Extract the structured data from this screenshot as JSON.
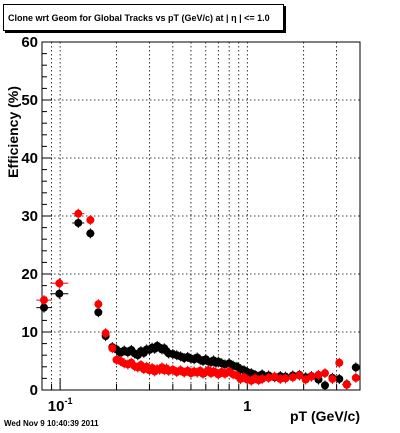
{
  "chart_data": {
    "type": "scatter",
    "title": "Clone wrt Geom for Global Tracks vs pT (GeV/c) at |  η | <= 1.0",
    "xlabel": "pT (GeV/c)",
    "ylabel": "Efficiency (%)",
    "xscale": "log",
    "xlim": [
      0.08,
      4.0
    ],
    "ylim": [
      0,
      60
    ],
    "grid": true,
    "x_tick_labels": [
      {
        "value": 0.1,
        "base": "10",
        "exp": "-1"
      },
      {
        "value": 1,
        "base": "1",
        "exp": ""
      }
    ],
    "y_ticks": [
      0,
      10,
      20,
      30,
      40,
      50,
      60
    ],
    "series": [
      {
        "color": "#000000",
        "points": [
          [
            0.082,
            14.2
          ],
          [
            0.099,
            16.6
          ],
          [
            0.125,
            28.8
          ],
          [
            0.145,
            27.0
          ],
          [
            0.16,
            13.4
          ],
          [
            0.175,
            9.3
          ],
          [
            0.19,
            7.4
          ],
          [
            0.2,
            7.0
          ],
          [
            0.21,
            6.4
          ],
          [
            0.22,
            6.8
          ],
          [
            0.23,
            6.5
          ],
          [
            0.24,
            6.9
          ],
          [
            0.25,
            6.3
          ],
          [
            0.26,
            6.0
          ],
          [
            0.27,
            6.7
          ],
          [
            0.28,
            6.4
          ],
          [
            0.29,
            7.0
          ],
          [
            0.3,
            6.9
          ],
          [
            0.31,
            7.3
          ],
          [
            0.32,
            7.1
          ],
          [
            0.33,
            7.6
          ],
          [
            0.34,
            7.3
          ],
          [
            0.35,
            7.0
          ],
          [
            0.36,
            7.2
          ],
          [
            0.37,
            6.7
          ],
          [
            0.38,
            6.3
          ],
          [
            0.4,
            6.2
          ],
          [
            0.42,
            6.0
          ],
          [
            0.44,
            5.8
          ],
          [
            0.46,
            5.5
          ],
          [
            0.48,
            5.7
          ],
          [
            0.5,
            5.4
          ],
          [
            0.52,
            5.3
          ],
          [
            0.54,
            5.6
          ],
          [
            0.56,
            5.2
          ],
          [
            0.58,
            5.0
          ],
          [
            0.6,
            5.3
          ],
          [
            0.62,
            4.9
          ],
          [
            0.64,
            4.8
          ],
          [
            0.66,
            5.1
          ],
          [
            0.68,
            4.7
          ],
          [
            0.7,
            4.9
          ],
          [
            0.73,
            4.6
          ],
          [
            0.76,
            4.4
          ],
          [
            0.8,
            4.6
          ],
          [
            0.84,
            4.2
          ],
          [
            0.88,
            4.0
          ],
          [
            0.92,
            3.6
          ],
          [
            0.96,
            3.4
          ],
          [
            1.0,
            3.1
          ],
          [
            1.05,
            2.9
          ],
          [
            1.1,
            2.6
          ],
          [
            1.15,
            2.3
          ],
          [
            1.2,
            2.7
          ],
          [
            1.3,
            2.5
          ],
          [
            1.4,
            2.2
          ],
          [
            1.5,
            2.4
          ],
          [
            1.6,
            2.3
          ],
          [
            1.75,
            2.5
          ],
          [
            1.9,
            2.6
          ],
          [
            2.05,
            2.2
          ],
          [
            2.2,
            2.4
          ],
          [
            2.4,
            1.8
          ],
          [
            2.6,
            0.8
          ],
          [
            2.85,
            2.1
          ],
          [
            3.1,
            1.9
          ],
          [
            3.4,
            1.0
          ],
          [
            3.8,
            3.9
          ]
        ]
      },
      {
        "color": "#ff0000",
        "points": [
          [
            0.082,
            15.5
          ],
          [
            0.099,
            18.4
          ],
          [
            0.125,
            30.4
          ],
          [
            0.145,
            29.3
          ],
          [
            0.16,
            14.8
          ],
          [
            0.175,
            9.8
          ],
          [
            0.19,
            7.2
          ],
          [
            0.2,
            5.2
          ],
          [
            0.21,
            5.0
          ],
          [
            0.22,
            4.6
          ],
          [
            0.23,
            4.4
          ],
          [
            0.24,
            4.7
          ],
          [
            0.25,
            4.1
          ],
          [
            0.26,
            3.9
          ],
          [
            0.27,
            4.3
          ],
          [
            0.28,
            3.6
          ],
          [
            0.29,
            4.0
          ],
          [
            0.3,
            3.4
          ],
          [
            0.31,
            3.8
          ],
          [
            0.32,
            3.2
          ],
          [
            0.33,
            3.6
          ],
          [
            0.34,
            3.5
          ],
          [
            0.35,
            3.9
          ],
          [
            0.36,
            3.4
          ],
          [
            0.37,
            3.7
          ],
          [
            0.38,
            3.3
          ],
          [
            0.4,
            3.5
          ],
          [
            0.42,
            3.1
          ],
          [
            0.44,
            3.4
          ],
          [
            0.46,
            3.0
          ],
          [
            0.48,
            3.3
          ],
          [
            0.5,
            2.9
          ],
          [
            0.52,
            3.2
          ],
          [
            0.54,
            3.0
          ],
          [
            0.56,
            3.3
          ],
          [
            0.58,
            2.8
          ],
          [
            0.6,
            3.1
          ],
          [
            0.62,
            3.4
          ],
          [
            0.64,
            2.9
          ],
          [
            0.66,
            3.2
          ],
          [
            0.68,
            3.0
          ],
          [
            0.7,
            2.7
          ],
          [
            0.73,
            3.1
          ],
          [
            0.76,
            2.8
          ],
          [
            0.8,
            3.2
          ],
          [
            0.84,
            2.7
          ],
          [
            0.88,
            2.5
          ],
          [
            0.92,
            1.9
          ],
          [
            0.96,
            2.2
          ],
          [
            1.0,
            1.8
          ],
          [
            1.05,
            1.6
          ],
          [
            1.1,
            2.0
          ],
          [
            1.15,
            1.7
          ],
          [
            1.2,
            1.9
          ],
          [
            1.3,
            2.1
          ],
          [
            1.4,
            2.3
          ],
          [
            1.5,
            1.9
          ],
          [
            1.6,
            2.0
          ],
          [
            1.75,
            2.2
          ],
          [
            1.9,
            2.5
          ],
          [
            2.05,
            1.8
          ],
          [
            2.2,
            2.3
          ],
          [
            2.4,
            2.6
          ],
          [
            2.6,
            2.9
          ],
          [
            2.85,
            1.9
          ],
          [
            3.1,
            4.7
          ],
          [
            3.4,
            0.9
          ],
          [
            3.8,
            2.1
          ]
        ]
      }
    ]
  },
  "footer": {
    "timestamp": "Wed Nov  9 10:40:39 2011"
  }
}
